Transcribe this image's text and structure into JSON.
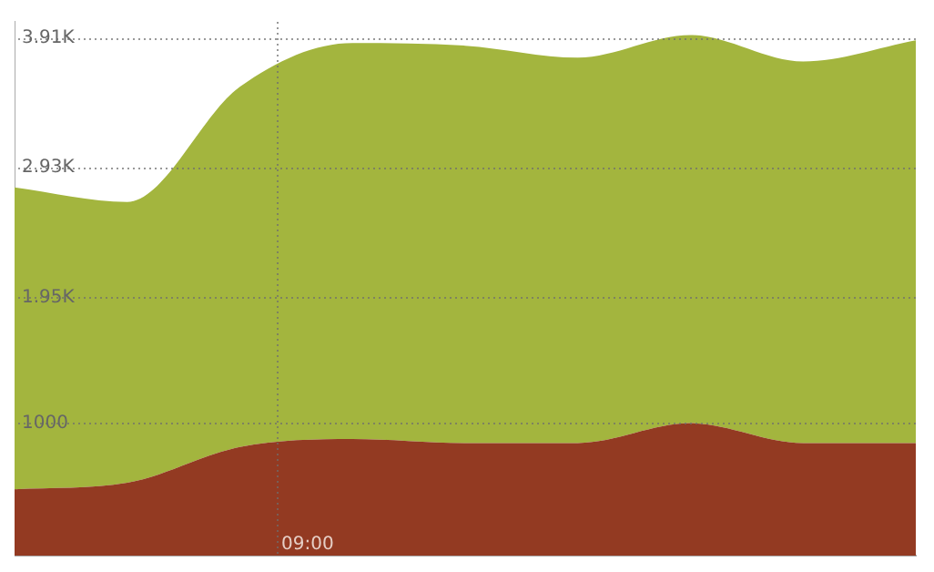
{
  "chart_data": {
    "type": "area",
    "stacked": true,
    "categories": [
      null,
      null,
      null,
      null,
      null,
      null,
      null,
      null,
      null
    ],
    "series": [
      {
        "color": "#933a22",
        "values": [
          500,
          550,
          820,
          880,
          850,
          850,
          1000,
          850,
          850
        ]
      },
      {
        "color": "#a3b53e",
        "values": [
          2280,
          2120,
          2720,
          2990,
          3000,
          2910,
          2930,
          2880,
          3040
        ]
      }
    ],
    "annotations": [
      "09:00"
    ],
    "ylim": [
      0,
      4030
    ],
    "yticks": [
      1000,
      {
        "value": 1950,
        "label": "1.95K"
      },
      {
        "value": 2930,
        "label": "2.93K"
      },
      {
        "value": 3910,
        "label": "3.91K"
      }
    ],
    "grid": "y",
    "legend": false
  }
}
